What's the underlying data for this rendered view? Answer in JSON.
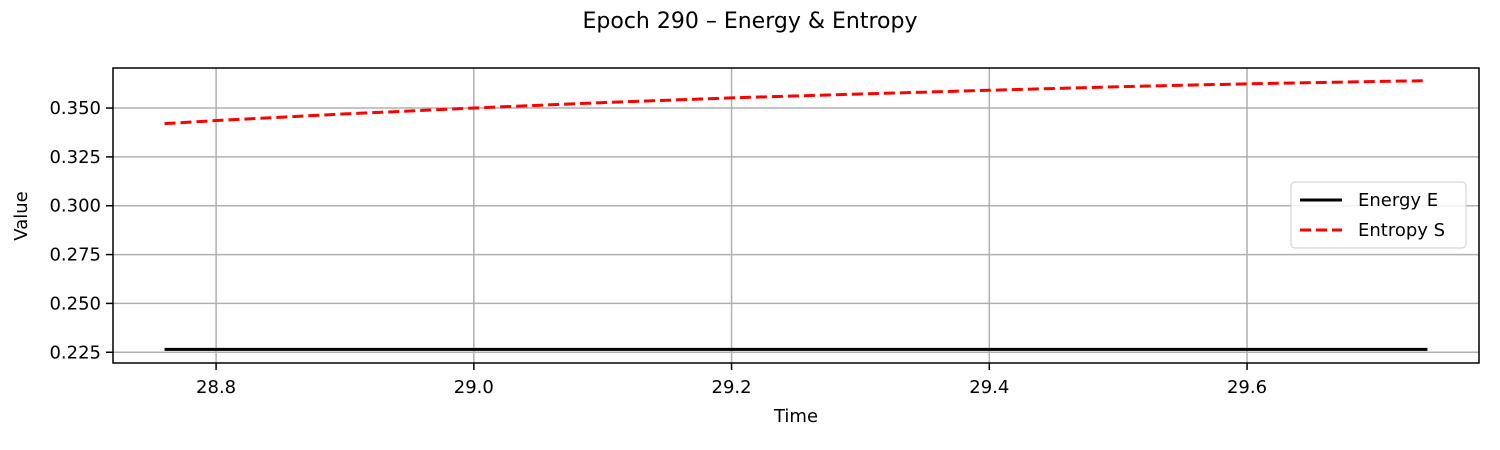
{
  "chart_data": {
    "type": "line",
    "title": "Epoch 290 – Energy & Entropy",
    "xlabel": "Time",
    "ylabel": "Value",
    "xlim": [
      28.72,
      29.78
    ],
    "ylim": [
      0.2195,
      0.3705
    ],
    "xticks": [
      28.8,
      29.0,
      29.2,
      29.4,
      29.6
    ],
    "xtick_labels": [
      "28.8",
      "29.0",
      "29.2",
      "29.4",
      "29.6"
    ],
    "yticks": [
      0.225,
      0.25,
      0.275,
      0.3,
      0.325,
      0.35
    ],
    "ytick_labels": [
      "0.225",
      "0.250",
      "0.275",
      "0.300",
      "0.325",
      "0.350"
    ],
    "grid": true,
    "legend_position": "center-right",
    "series": [
      {
        "name": "Energy E",
        "color": "#000000",
        "style": "solid",
        "x": [
          28.76,
          28.9,
          29.0,
          29.2,
          29.4,
          29.6,
          29.74
        ],
        "y": [
          0.2265,
          0.2265,
          0.2265,
          0.2265,
          0.2265,
          0.2265,
          0.2265
        ]
      },
      {
        "name": "Entropy S",
        "color": "#ff0000",
        "style": "dashed",
        "x": [
          28.76,
          28.8,
          28.9,
          29.0,
          29.1,
          29.2,
          29.3,
          29.4,
          29.5,
          29.6,
          29.7,
          29.74
        ],
        "y": [
          0.342,
          0.3436,
          0.347,
          0.35,
          0.3528,
          0.3552,
          0.3572,
          0.3591,
          0.3609,
          0.3624,
          0.3636,
          0.364
        ]
      }
    ]
  }
}
